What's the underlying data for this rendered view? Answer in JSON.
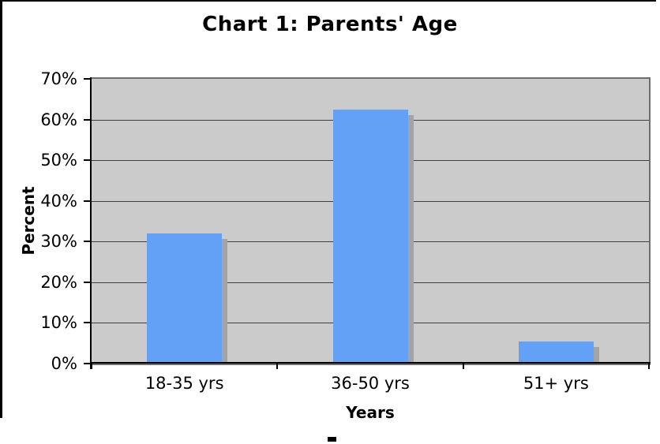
{
  "chart_data": {
    "type": "bar",
    "title": "Chart 1: Parents' Age",
    "categories": [
      "18-35 yrs",
      "36-50 yrs",
      "51+ yrs"
    ],
    "values": [
      32,
      62.5,
      5.5
    ],
    "xlabel": "Years",
    "ylabel": "Percent",
    "ylim": [
      0,
      70
    ],
    "y_tick_step": 10,
    "y_tick_labels": [
      "0%",
      "10%",
      "20%",
      "30%",
      "40%",
      "50%",
      "60%",
      "70%"
    ],
    "grid": true,
    "legend_position": "none",
    "colors": {
      "bar_fill": "#62A1F5",
      "bar_shadow": "#A4A4A4",
      "plot_background": "#CBCBCB",
      "gridline": "#3f3f3f",
      "axis": "#000000",
      "frame_border": "#000000",
      "page_background": "#ffffff"
    }
  }
}
